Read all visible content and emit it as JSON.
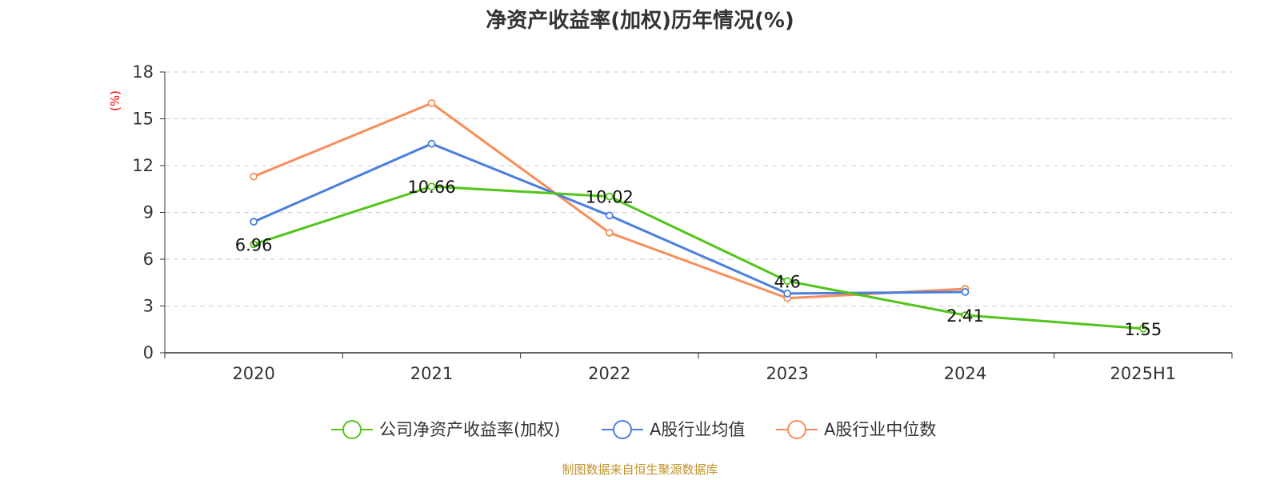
{
  "chart_data": {
    "type": "line",
    "title": "净资产收益率(加权)历年情况(%)",
    "ylabel": "(%)",
    "xlabel": "",
    "categories": [
      "2020",
      "2021",
      "2022",
      "2023",
      "2024",
      "2025H1"
    ],
    "ylim": [
      0,
      18
    ],
    "yticks": [
      0,
      3,
      6,
      9,
      12,
      15,
      18
    ],
    "grid": true,
    "legend_position": "bottom-center",
    "series": [
      {
        "name": "公司净资产收益率(加权)",
        "color": "#52c41a",
        "values": [
          6.96,
          10.66,
          10.02,
          4.6,
          2.41,
          1.55
        ],
        "labels": [
          "6.96",
          "10.66",
          "10.02",
          "4.6",
          "2.41",
          "1.55"
        ]
      },
      {
        "name": "A股行业均值",
        "color": "#4a7fde",
        "values": [
          8.4,
          13.4,
          8.8,
          3.8,
          3.9,
          null
        ]
      },
      {
        "name": "A股行业中位数",
        "color": "#f88d5a",
        "values": [
          11.3,
          16.0,
          7.7,
          3.5,
          4.1,
          null
        ]
      }
    ]
  },
  "footer": {
    "source": "制图数据来自恒生聚源数据库"
  }
}
